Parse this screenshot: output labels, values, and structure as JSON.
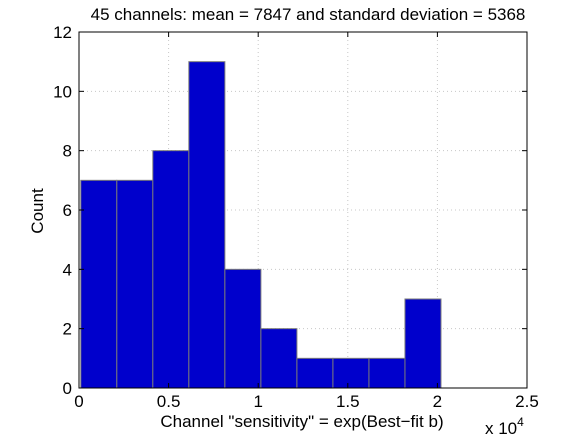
{
  "chart_data": {
    "type": "bar",
    "title": "45 channels: mean = 7847 and standard deviation = 5368",
    "xlabel": "Channel \"sensitivity\" = exp(Best−fit b)",
    "ylabel": "Count",
    "x_multiplier_label": "x 10",
    "x_multiplier_exponent": "4",
    "xlim": [
      0,
      25000
    ],
    "ylim": [
      0,
      12
    ],
    "x_ticks": [
      {
        "value": 0,
        "label": "0"
      },
      {
        "value": 5000,
        "label": "0.5"
      },
      {
        "value": 10000,
        "label": "1"
      },
      {
        "value": 15000,
        "label": "1.5"
      },
      {
        "value": 20000,
        "label": "2"
      },
      {
        "value": 25000,
        "label": "2.5"
      }
    ],
    "y_ticks": [
      {
        "value": 0,
        "label": "0"
      },
      {
        "value": 2,
        "label": "2"
      },
      {
        "value": 4,
        "label": "4"
      },
      {
        "value": 6,
        "label": "6"
      },
      {
        "value": 8,
        "label": "8"
      },
      {
        "value": 10,
        "label": "10"
      },
      {
        "value": 12,
        "label": "12"
      }
    ],
    "grid": true,
    "bins": [
      {
        "x0": 100,
        "x1": 2110,
        "count": 7
      },
      {
        "x0": 2110,
        "x1": 4120,
        "count": 7
      },
      {
        "x0": 4120,
        "x1": 6130,
        "count": 8
      },
      {
        "x0": 6130,
        "x1": 8140,
        "count": 11
      },
      {
        "x0": 8140,
        "x1": 10150,
        "count": 4
      },
      {
        "x0": 10150,
        "x1": 12160,
        "count": 2
      },
      {
        "x0": 12160,
        "x1": 14170,
        "count": 1
      },
      {
        "x0": 14170,
        "x1": 16180,
        "count": 1
      },
      {
        "x0": 16180,
        "x1": 18190,
        "count": 1
      },
      {
        "x0": 18190,
        "x1": 20200,
        "count": 3
      }
    ],
    "bar_color": "#0000cc",
    "edge_color": "#7a7a7a"
  }
}
